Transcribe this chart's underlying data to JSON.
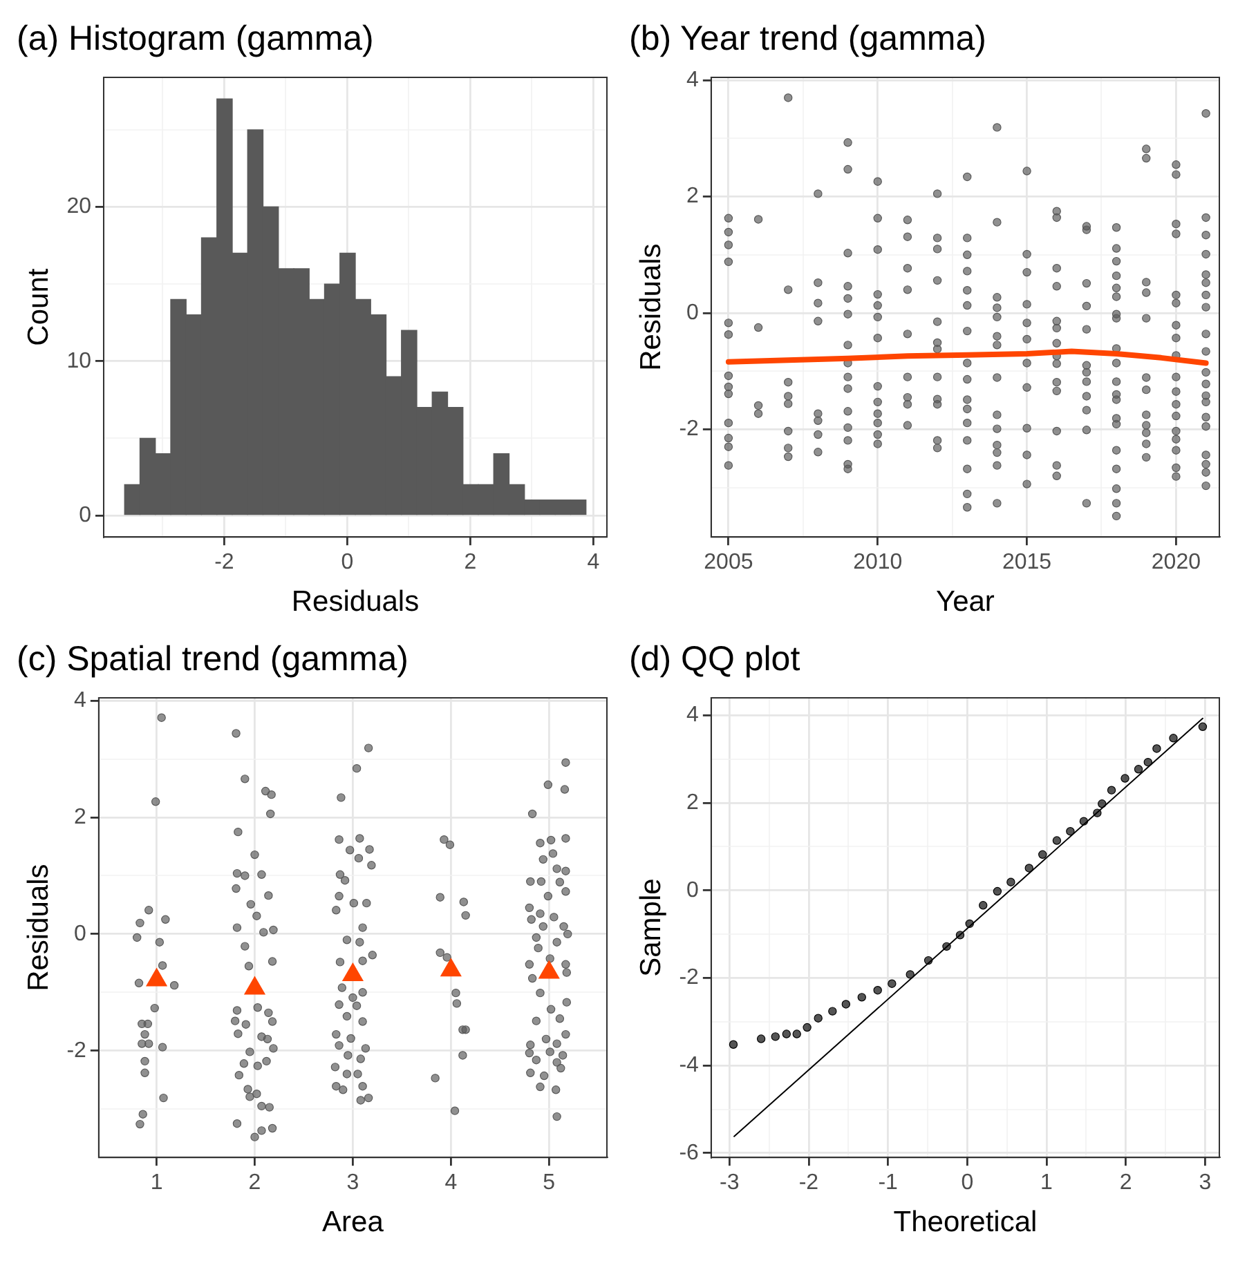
{
  "chart_data": [
    {
      "type": "histogram",
      "title": "(a) Histogram (gamma)",
      "xlabel": "Residuals",
      "ylabel": "Count",
      "color": "#595959",
      "bins": [
        -3.62,
        -3.37,
        -3.12,
        -2.87,
        -2.62,
        -2.37,
        -2.12,
        -1.87,
        -1.62,
        -1.37,
        -1.12,
        -0.87,
        -0.62,
        -0.37,
        -0.12,
        0.13,
        0.38,
        0.63,
        0.88,
        1.13,
        1.38,
        1.63,
        1.88,
        2.13,
        2.38,
        2.63,
        2.88,
        3.13,
        3.38,
        3.63,
        3.88
      ],
      "values": [
        2,
        5,
        4,
        14,
        13,
        18,
        27,
        17,
        25,
        20,
        16,
        16,
        14,
        15,
        17,
        14,
        13,
        9,
        12,
        7,
        8,
        7,
        2,
        2,
        4,
        2,
        1,
        1,
        1,
        1
      ],
      "xlim": [
        -3.96,
        4.22
      ],
      "xticks": [
        {
          "value": -3,
          "label": null
        },
        -2,
        {
          "value": -1,
          "label": null
        },
        0,
        {
          "value": 1,
          "label": null
        },
        2,
        {
          "value": 3,
          "label": null
        },
        4
      ],
      "ylim": [
        -1.4,
        28.4
      ],
      "yticks": [
        0,
        {
          "value": 5,
          "label": null
        },
        10,
        {
          "value": 15,
          "label": null
        },
        20,
        {
          "value": 25,
          "label": null
        }
      ],
      "grid": true
    },
    {
      "type": "scatter",
      "title": "(b) Year trend (gamma)",
      "xlabel": "Year",
      "ylabel": "Residuals",
      "grid": true,
      "xlim": [
        2004.42,
        2021.45
      ],
      "xticks": [
        2005,
        {
          "value": 2007.5,
          "label": null
        },
        2010,
        {
          "value": 2012.5,
          "label": null
        },
        2015,
        {
          "value": 2017.5,
          "label": null
        },
        2020
      ],
      "ylim": [
        -3.85,
        4.05
      ],
      "yticks": [
        {
          "value": -3,
          "label": null
        },
        -2,
        {
          "value": -1,
          "label": null
        },
        0,
        {
          "value": 1,
          "label": null
        },
        2,
        {
          "value": 3,
          "label": null
        },
        4
      ],
      "series": [
        {
          "type": "scatter",
          "color": "#595959",
          "marker": "circle",
          "x": [
            2005,
            2005,
            2005,
            2005,
            2005,
            2005,
            2005,
            2005,
            2005,
            2005,
            2005,
            2005,
            2005,
            2006,
            2006,
            2006,
            2006,
            2007,
            2007,
            2007,
            2007,
            2007,
            2007,
            2007,
            2007,
            2008,
            2008,
            2008,
            2008,
            2008,
            2008,
            2008,
            2008,
            2009,
            2009,
            2009,
            2009,
            2009,
            2009,
            2009,
            2009,
            2009,
            2009,
            2009,
            2009,
            2009,
            2009,
            2009,
            2010,
            2010,
            2010,
            2010,
            2010,
            2010,
            2010,
            2010,
            2010,
            2010,
            2010,
            2010,
            2010,
            2011,
            2011,
            2011,
            2011,
            2011,
            2011,
            2011,
            2011,
            2011,
            2012,
            2012,
            2012,
            2012,
            2012,
            2012,
            2012,
            2012,
            2012,
            2012,
            2012,
            2012,
            2013,
            2013,
            2013,
            2013,
            2013,
            2013,
            2013,
            2013,
            2013,
            2013,
            2013,
            2013,
            2013,
            2013,
            2013,
            2013,
            2014,
            2014,
            2014,
            2014,
            2014,
            2014,
            2014,
            2014,
            2014,
            2014,
            2014,
            2014,
            2014,
            2014,
            2015,
            2015,
            2015,
            2015,
            2015,
            2015,
            2015,
            2015,
            2015,
            2015,
            2015,
            2016,
            2016,
            2016,
            2016,
            2016,
            2016,
            2016,
            2016,
            2016,
            2016,
            2016,
            2016,
            2016,
            2016,
            2017,
            2017,
            2017,
            2017,
            2017,
            2017,
            2017,
            2017,
            2017,
            2017,
            2017,
            2017,
            2018,
            2018,
            2018,
            2018,
            2018,
            2018,
            2018,
            2018,
            2018,
            2018,
            2018,
            2018,
            2018,
            2018,
            2018,
            2018,
            2018,
            2018,
            2018,
            2018,
            2019,
            2019,
            2019,
            2019,
            2019,
            2019,
            2019,
            2019,
            2019,
            2019,
            2019,
            2019,
            2020,
            2020,
            2020,
            2020,
            2020,
            2020,
            2020,
            2020,
            2020,
            2020,
            2020,
            2020,
            2020,
            2020,
            2020,
            2020,
            2020,
            2020,
            2021,
            2021,
            2021,
            2021,
            2021,
            2021,
            2021,
            2021,
            2021,
            2021,
            2021,
            2021,
            2021,
            2021,
            2021,
            2021,
            2021,
            2021,
            2021,
            2021
          ],
          "values": [
            1.63,
            1.39,
            1.17,
            0.88,
            -0.17,
            -0.37,
            -1.08,
            -1.27,
            -1.39,
            -1.89,
            -2.15,
            -2.3,
            -2.62,
            1.61,
            -0.25,
            -1.59,
            -1.73,
            3.7,
            0.4,
            -1.19,
            -1.43,
            -1.56,
            -2.03,
            -2.32,
            -2.47,
            2.05,
            0.52,
            0.17,
            -0.14,
            -1.73,
            -1.85,
            -2.09,
            -2.39,
            2.93,
            2.47,
            1.03,
            0.46,
            0.25,
            -0.02,
            -0.55,
            -0.86,
            -1.1,
            -1.3,
            -1.69,
            -1.97,
            -2.19,
            -2.6,
            -2.68,
            2.26,
            1.63,
            1.09,
            0.32,
            0.13,
            -0.07,
            -0.43,
            -1.26,
            -1.53,
            -1.73,
            -1.89,
            -2.09,
            -2.25,
            1.6,
            1.31,
            0.77,
            0.4,
            -0.36,
            -1.1,
            -1.45,
            -1.57,
            -1.93,
            2.05,
            1.29,
            1.1,
            0.56,
            -0.15,
            -0.51,
            -0.62,
            -1.1,
            -1.48,
            -1.57,
            -2.19,
            -2.32,
            2.34,
            1.29,
            1.0,
            0.72,
            0.39,
            0.13,
            -0.31,
            -0.86,
            -1.14,
            -1.49,
            -1.65,
            -1.89,
            -2.19,
            -2.68,
            -3.11,
            -3.34,
            3.19,
            1.56,
            0.27,
            0.09,
            -0.07,
            -0.4,
            -0.55,
            -1.11,
            -1.75,
            -1.99,
            -2.27,
            -2.4,
            -2.62,
            -3.27,
            2.44,
            1.01,
            0.7,
            0.15,
            -0.17,
            -0.45,
            -0.86,
            -1.28,
            -1.98,
            -2.44,
            -2.94,
            1.75,
            1.64,
            0.77,
            0.46,
            -0.14,
            -0.26,
            -0.52,
            -0.74,
            -0.87,
            -1.19,
            -1.34,
            -2.03,
            -2.62,
            -2.8,
            1.49,
            1.43,
            0.51,
            0.12,
            -0.28,
            -0.9,
            -1.02,
            -1.18,
            -1.43,
            -1.67,
            -2.01,
            -3.27,
            1.47,
            1.11,
            0.89,
            0.64,
            0.43,
            0.28,
            -0.02,
            -0.09,
            -0.61,
            -0.86,
            -1.18,
            -1.4,
            -1.49,
            -1.81,
            -1.91,
            -2.36,
            -2.68,
            -3.02,
            -3.27,
            -3.49,
            2.82,
            2.66,
            0.53,
            0.35,
            -0.09,
            -1.11,
            -1.32,
            -1.75,
            -1.93,
            -2.06,
            -2.25,
            -2.48,
            2.55,
            2.38,
            1.53,
            1.36,
            0.31,
            0.17,
            -0.21,
            -0.43,
            -0.73,
            -1.1,
            -1.35,
            -1.57,
            -1.77,
            -2.03,
            -2.17,
            -2.36,
            -2.66,
            -2.81,
            3.43,
            1.64,
            1.34,
            1.01,
            0.66,
            0.52,
            0.31,
            0.1,
            -0.36,
            -0.66,
            -1.02,
            -1.22,
            -1.42,
            -1.53,
            -1.79,
            -1.95,
            -2.44,
            -2.6,
            -2.74,
            -2.97
          ]
        },
        {
          "type": "line",
          "color": "#ff4500",
          "x": [
            2005,
            2007,
            2009,
            2011,
            2013,
            2015,
            2016.5,
            2018,
            2019.5,
            2021
          ],
          "values": [
            -0.84,
            -0.81,
            -0.78,
            -0.74,
            -0.72,
            -0.7,
            -0.66,
            -0.7,
            -0.77,
            -0.86
          ]
        }
      ]
    },
    {
      "type": "scatter",
      "title": "(c) Spatial trend (gamma)",
      "xlabel": "Area",
      "ylabel": "Residuals",
      "grid": true,
      "xlim": [
        0.41,
        5.59
      ],
      "xticks": [
        1,
        2,
        3,
        4,
        5
      ],
      "ylim": [
        -3.83,
        4.05
      ],
      "yticks": [
        {
          "value": -3,
          "label": null
        },
        -2,
        {
          "value": -1,
          "label": null
        },
        0,
        {
          "value": 1,
          "label": null
        },
        2,
        {
          "value": 3,
          "label": null
        },
        4
      ],
      "series": [
        {
          "type": "scatter",
          "color": "#595959",
          "marker": "circle",
          "x": [
            1.05,
            0.99,
            0.92,
            0.83,
            1.09,
            1.03,
            0.8,
            0.82,
            1.18,
            0.98,
            0.85,
            0.91,
            0.88,
            0.85,
            0.92,
            1.06,
            0.88,
            0.88,
            1.07,
            0.86,
            0.83,
            1.06,
            1.81,
            1.9,
            2.11,
            2.17,
            2.16,
            1.83,
            2.0,
            1.82,
            1.9,
            2.07,
            2.14,
            1.81,
            1.96,
            1.82,
            2.02,
            2.09,
            2.19,
            1.9,
            2.18,
            1.94,
            1.82,
            2.03,
            2.14,
            1.8,
            1.91,
            2.18,
            2.07,
            1.83,
            2.13,
            2.19,
            1.95,
            2.12,
            1.89,
            1.84,
            2.03,
            1.93,
            2.02,
            1.95,
            2.07,
            2.15,
            1.82,
            2.18,
            2.07,
            2.0,
            3.16,
            3.04,
            2.88,
            2.86,
            3.07,
            2.97,
            3.17,
            3.06,
            3.19,
            2.87,
            2.92,
            2.86,
            2.83,
            3.01,
            3.14,
            3.1,
            2.94,
            3.07,
            3.2,
            2.87,
            3.1,
            2.89,
            3.1,
            3.0,
            2.86,
            3.04,
            2.94,
            3.1,
            2.83,
            2.98,
            3.13,
            2.86,
            2.95,
            3.08,
            2.82,
            2.94,
            3.05,
            2.83,
            2.9,
            3.1,
            3.08,
            3.16,
            3.93,
            3.99,
            3.89,
            4.13,
            4.15,
            3.89,
            3.96,
            4.05,
            4.06,
            4.15,
            4.12,
            4.12,
            3.84,
            4.04,
            5.17,
            4.99,
            5.16,
            4.83,
            5.17,
            4.91,
            5.02,
            5.04,
            4.94,
            5.08,
            5.17,
            4.81,
            4.92,
            5.11,
            5.17,
            4.99,
            4.8,
            4.91,
            5.05,
            5.15,
            4.82,
            4.94,
            5.19,
            4.87,
            5.08,
            4.89,
            5.01,
            4.8,
            5.17,
            4.83,
            5.18,
            4.91,
            5.18,
            5.02,
            4.87,
            5.11,
            5.17,
            4.81,
            4.97,
            5.08,
            4.8,
            5.01,
            5.14,
            4.87,
            5.08,
            4.81,
            4.95,
            5.12,
            4.91,
            5.07,
            5.08
          ],
          "values": [
            3.71,
            2.27,
            0.41,
            0.19,
            0.25,
            -0.14,
            -0.06,
            -0.84,
            -0.88,
            -1.27,
            -1.54,
            -1.54,
            -1.72,
            -1.88,
            -1.88,
            -1.94,
            -2.18,
            -2.38,
            -2.81,
            -3.09,
            -3.26,
            -0.54,
            3.44,
            2.66,
            2.45,
            2.39,
            2.06,
            1.75,
            1.36,
            1.04,
            1.0,
            1.02,
            0.66,
            0.78,
            0.51,
            0.11,
            0.31,
            0.03,
            0.07,
            -0.21,
            -0.47,
            -0.55,
            -1.31,
            -1.26,
            -1.35,
            -1.49,
            -1.55,
            -1.5,
            -1.76,
            -1.71,
            -1.8,
            -1.96,
            -2.02,
            -2.18,
            -2.22,
            -2.42,
            -2.26,
            -2.66,
            -2.74,
            -2.79,
            -2.95,
            -2.97,
            -3.25,
            -3.33,
            -3.37,
            -3.48,
            3.19,
            2.84,
            2.34,
            1.62,
            1.64,
            1.44,
            1.45,
            1.3,
            1.18,
            1.02,
            0.92,
            0.65,
            0.41,
            0.53,
            0.53,
            0.11,
            -0.1,
            -0.14,
            -0.36,
            -0.48,
            -0.46,
            -0.92,
            -1.0,
            -1.09,
            -1.21,
            -1.23,
            -1.41,
            -1.5,
            -1.72,
            -1.79,
            -1.96,
            -1.91,
            -2.08,
            -2.14,
            -2.28,
            -2.4,
            -2.4,
            -2.61,
            -2.67,
            -2.61,
            -2.85,
            -2.81,
            1.62,
            1.53,
            0.63,
            0.55,
            0.32,
            -0.32,
            -0.4,
            -1.01,
            -1.19,
            -1.64,
            -1.64,
            -2.08,
            -2.47,
            -3.03,
            2.94,
            2.56,
            2.48,
            2.06,
            1.64,
            1.56,
            1.61,
            1.38,
            1.28,
            1.12,
            1.08,
            0.9,
            0.9,
            0.89,
            0.73,
            0.65,
            0.45,
            0.35,
            0.29,
            0.13,
            0.25,
            0.13,
            0.0,
            -0.06,
            -0.14,
            -0.24,
            -0.42,
            -0.52,
            -0.52,
            -0.76,
            -0.66,
            -1.01,
            -1.17,
            -1.29,
            -1.49,
            -1.45,
            -1.72,
            -1.9,
            -1.8,
            -1.88,
            -2.04,
            -2.02,
            -2.08,
            -2.16,
            -2.2,
            -2.38,
            -2.43,
            -2.3,
            -2.62,
            -2.67,
            -3.13
          ]
        },
        {
          "type": "scatter",
          "color": "#ff4500",
          "marker": "triangle",
          "x": [
            1,
            2,
            3,
            4,
            5
          ],
          "values": [
            -0.79,
            -0.93,
            -0.7,
            -0.62,
            -0.66
          ]
        }
      ]
    },
    {
      "type": "scatter",
      "title": "(d) QQ plot",
      "xlabel": "Theoretical",
      "ylabel": "Sample",
      "grid": true,
      "xlim": [
        -3.23,
        3.18
      ],
      "xticks": [
        -3,
        {
          "value": -2.5,
          "label": null
        },
        -2,
        {
          "value": -1.5,
          "label": null
        },
        -1,
        {
          "value": -0.5,
          "label": null
        },
        0,
        {
          "value": 0.5,
          "label": null
        },
        1,
        {
          "value": 1.5,
          "label": null
        },
        2,
        {
          "value": 2.5,
          "label": null
        },
        3
      ],
      "ylim": [
        -6.1,
        4.4
      ],
      "yticks": [
        -6,
        {
          "value": -5,
          "label": null
        },
        -4,
        {
          "value": -3,
          "label": null
        },
        -2,
        {
          "value": -1,
          "label": null
        },
        0,
        {
          "value": 1,
          "label": null
        },
        2,
        {
          "value": 3,
          "label": null
        },
        4
      ],
      "series": [
        {
          "type": "scatter",
          "color": "#000000",
          "marker": "circle",
          "x": [
            -2.95,
            -2.6,
            -2.42,
            -2.28,
            -2.15,
            -2.02,
            -1.88,
            -1.7,
            -1.53,
            -1.33,
            -1.13,
            -0.95,
            -0.72,
            -0.49,
            -0.26,
            -0.09,
            0.03,
            0.2,
            0.38,
            0.55,
            0.78,
            0.95,
            1.13,
            1.3,
            1.47,
            1.64,
            1.7,
            1.82,
            1.99,
            2.16,
            2.28,
            2.39,
            2.6,
            2.97
          ],
          "values": [
            -3.52,
            -3.39,
            -3.34,
            -3.28,
            -3.28,
            -3.13,
            -2.92,
            -2.76,
            -2.6,
            -2.44,
            -2.28,
            -2.13,
            -1.92,
            -1.6,
            -1.28,
            -1.02,
            -0.76,
            -0.34,
            -0.02,
            0.19,
            0.51,
            0.82,
            1.14,
            1.35,
            1.58,
            1.77,
            1.98,
            2.29,
            2.56,
            2.77,
            2.93,
            3.24,
            3.48,
            3.74
          ]
        },
        {
          "type": "line",
          "color": "#000000",
          "x": [
            -2.94,
            2.97
          ],
          "values": [
            -5.62,
            3.93
          ]
        }
      ]
    }
  ]
}
